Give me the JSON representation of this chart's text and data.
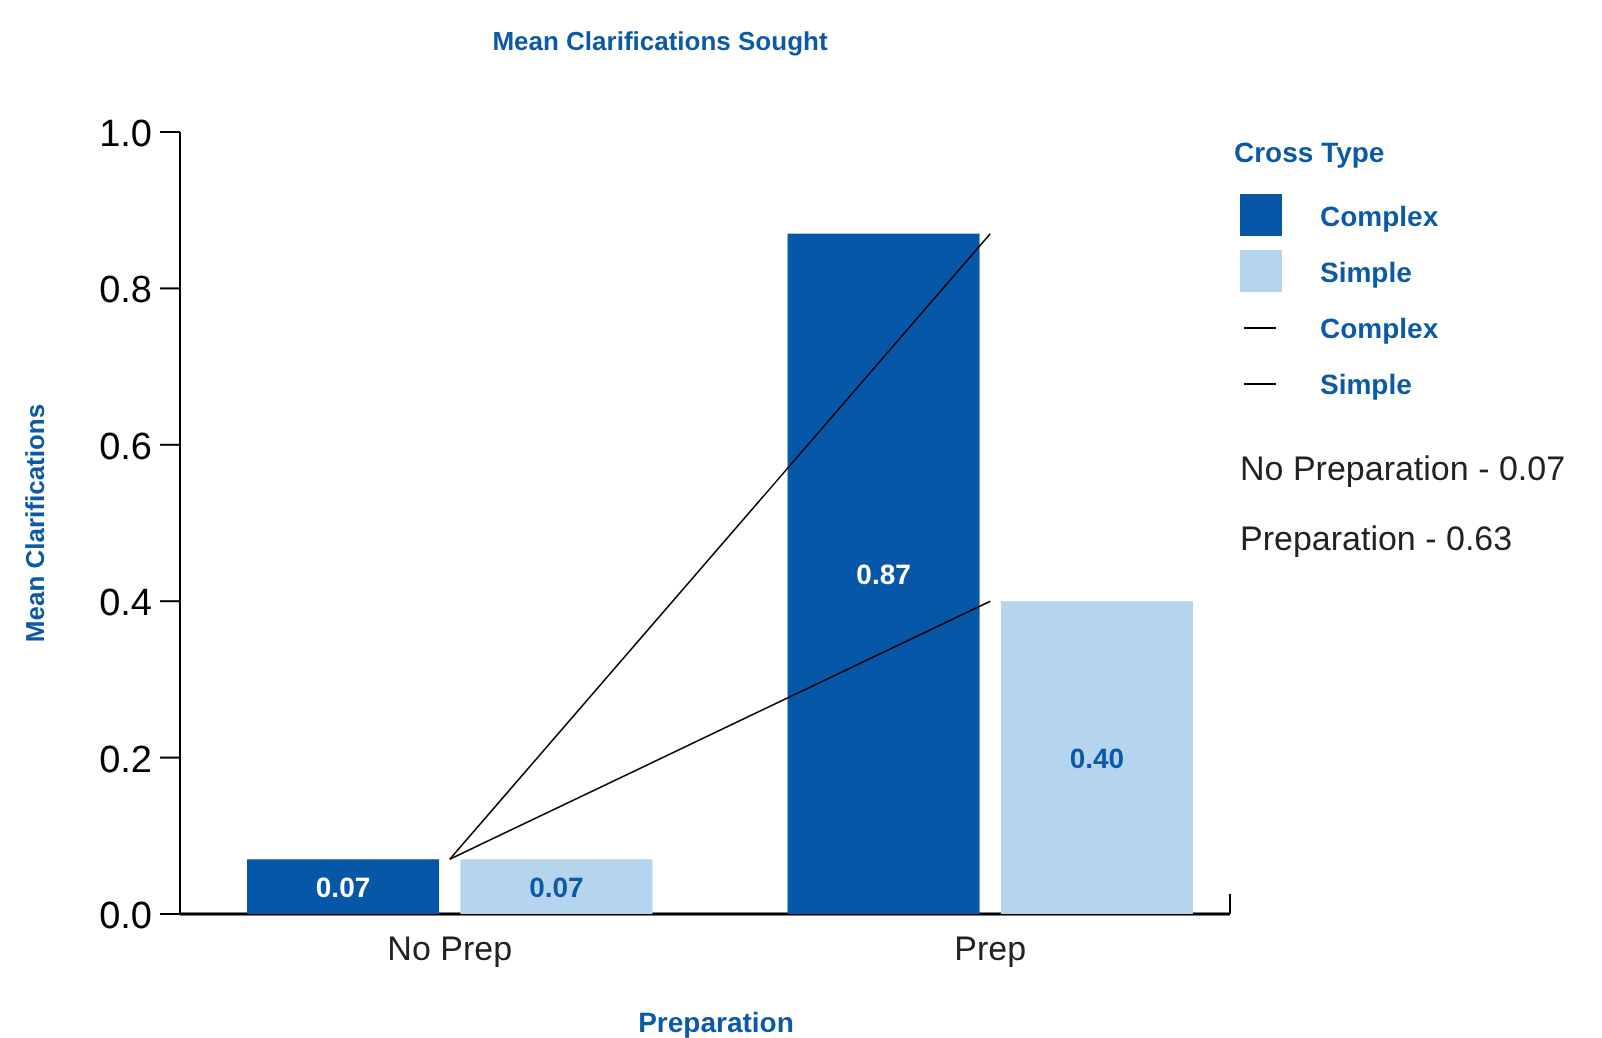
{
  "chart_data": {
    "type": "bar",
    "title": "Mean Clarifications Sought",
    "xlabel": "Preparation",
    "ylabel": "Mean Clarifications",
    "legend_title": "Cross Type",
    "categories": [
      "No Prep",
      "Prep"
    ],
    "series": [
      {
        "name": "Complex",
        "color": "#0657a8",
        "values": [
          0.07,
          0.87
        ],
        "value_labels": [
          "0.07",
          "0.87"
        ]
      },
      {
        "name": "Simple",
        "color": "#b5d5ee",
        "values": [
          0.07,
          0.4
        ],
        "value_labels": [
          "0.07",
          "0.40"
        ]
      },
      {
        "name": "Complex",
        "type": "line",
        "color": "#000000",
        "values": [
          0.07,
          0.87
        ]
      },
      {
        "name": "Simple",
        "type": "line",
        "color": "#000000",
        "values": [
          0.07,
          0.4
        ]
      }
    ],
    "ylim": [
      0,
      1
    ],
    "yticks": [
      {
        "value": 0,
        "label": "0.0"
      },
      {
        "value": 0.2,
        "label": "0.2"
      },
      {
        "value": 0.4,
        "label": "0.4"
      },
      {
        "value": 0.6,
        "label": "0.6"
      },
      {
        "value": 0.8,
        "label": "0.8"
      },
      {
        "value": 1,
        "label": "1.0"
      }
    ],
    "grid": false,
    "legend": "right",
    "marker": "none",
    "line_style": "solid",
    "annotations": [
      "No Preparation - 0.07",
      "Preparation - 0.63"
    ]
  }
}
